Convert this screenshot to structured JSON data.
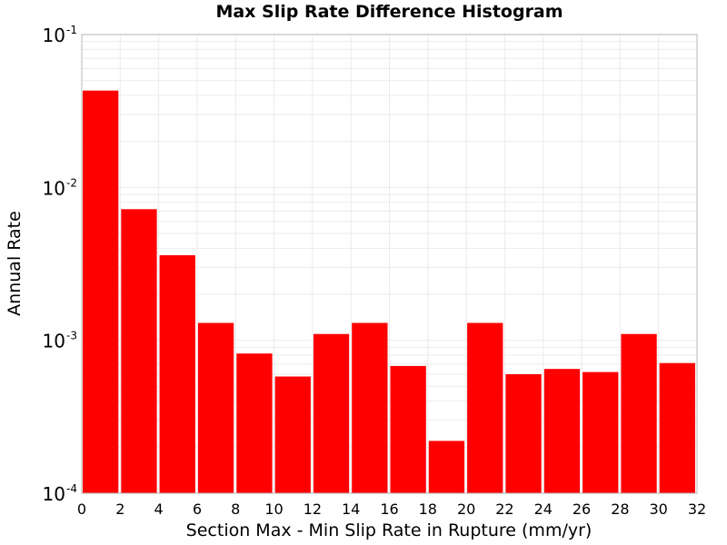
{
  "chart_data": {
    "type": "bar",
    "title": "Max Slip Rate Difference Histogram",
    "xlabel": "Section Max - Min Slip Rate in Rupture (mm/yr)",
    "ylabel": "Annual Rate",
    "xlim": [
      0,
      32
    ],
    "ylim": [
      0.0001,
      0.1
    ],
    "yscale": "log",
    "bin_width": 2,
    "x_ticks": [
      "0",
      "2",
      "4",
      "6",
      "8",
      "10",
      "12",
      "14",
      "16",
      "18",
      "20",
      "22",
      "24",
      "26",
      "28",
      "30",
      "32"
    ],
    "y_ticks": [
      {
        "base": "10",
        "exponent": "-1",
        "value": 0.1
      },
      {
        "base": "10",
        "exponent": "-2",
        "value": 0.01
      },
      {
        "base": "10",
        "exponent": "-3",
        "value": 0.001
      },
      {
        "base": "10",
        "exponent": "-4",
        "value": 0.0001
      }
    ],
    "bins": [
      {
        "x": 1,
        "value": 0.043
      },
      {
        "x": 3,
        "value": 0.0072
      },
      {
        "x": 5,
        "value": 0.0036
      },
      {
        "x": 7,
        "value": 0.0013
      },
      {
        "x": 9,
        "value": 0.00082
      },
      {
        "x": 11,
        "value": 0.00058
      },
      {
        "x": 13,
        "value": 0.0011
      },
      {
        "x": 15,
        "value": 0.0013
      },
      {
        "x": 17,
        "value": 0.00068
      },
      {
        "x": 19,
        "value": 0.00022
      },
      {
        "x": 21,
        "value": 0.0013
      },
      {
        "x": 23,
        "value": 0.0006
      },
      {
        "x": 25,
        "value": 0.00065
      },
      {
        "x": 27,
        "value": 0.00062
      },
      {
        "x": 29,
        "value": 0.0011
      },
      {
        "x": 31,
        "value": 0.00071
      }
    ],
    "bar_color": "#ff0000",
    "grid": true,
    "grid_color": "#ebebeb",
    "legend": "none"
  }
}
